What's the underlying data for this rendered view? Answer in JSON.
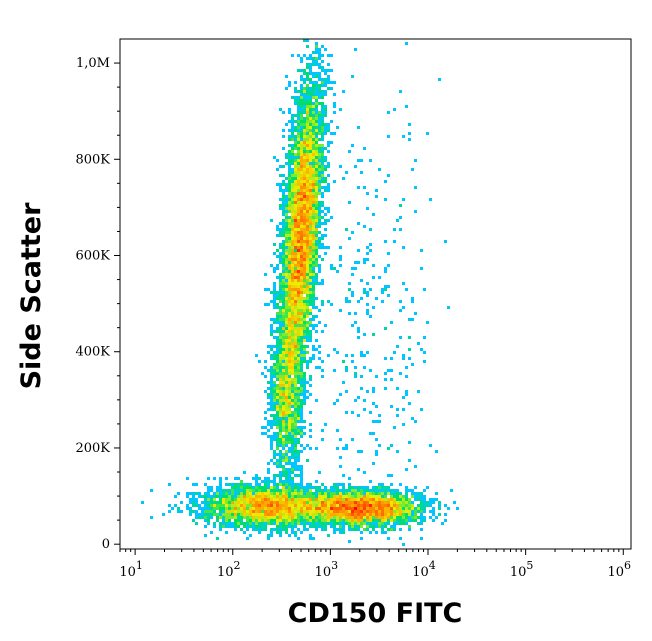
{
  "chart_data": {
    "type": "scatter",
    "subtype": "flow-cytometry density plot",
    "xlabel": "CD150 FITC",
    "ylabel": "Side Scatter",
    "x_scale": "log",
    "xlim": [
      7,
      1200000
    ],
    "ylim": [
      -10000,
      1050000
    ],
    "x_ticks": [
      {
        "value": 10,
        "base": "10",
        "exp": "1"
      },
      {
        "value": 100,
        "base": "10",
        "exp": "2"
      },
      {
        "value": 1000,
        "base": "10",
        "exp": "3"
      },
      {
        "value": 10000,
        "base": "10",
        "exp": "4"
      },
      {
        "value": 100000,
        "base": "10",
        "exp": "5"
      },
      {
        "value": 1000000,
        "base": "10",
        "exp": "6"
      }
    ],
    "y_ticks": [
      {
        "value": 0,
        "label": "0"
      },
      {
        "value": 200000,
        "label": "200K"
      },
      {
        "value": 400000,
        "label": "400K"
      },
      {
        "value": 600000,
        "label": "600K"
      },
      {
        "value": 800000,
        "label": "800K"
      },
      {
        "value": 1000000,
        "label": "1,0M"
      }
    ],
    "colormap": [
      "#0000ff",
      "#00c8ff",
      "#00e060",
      "#f0f000",
      "#ff8000",
      "#ff0000"
    ],
    "populations": [
      {
        "name": "main-streak",
        "cx_log": 2.7,
        "cy": 640000,
        "sx_log": 0.09,
        "sy": 160000,
        "slope_log_per_100k": 0.035,
        "count": 7000
      },
      {
        "name": "lower-left-cluster",
        "cx_log": 2.35,
        "cy": 80000,
        "sx_log": 0.32,
        "sy": 22000,
        "count": 3000
      },
      {
        "name": "lower-right-cluster",
        "cx_log": 3.3,
        "cy": 75000,
        "sx_log": 0.3,
        "sy": 18000,
        "count": 3500
      },
      {
        "name": "tail-lower",
        "cx_log": 2.55,
        "cy": 300000,
        "sx_log": 0.08,
        "sy": 80000,
        "count": 1200
      },
      {
        "name": "sparse-right",
        "cx_log": 3.4,
        "cy": 450000,
        "sx_log": 0.35,
        "sy": 250000,
        "count": 350
      }
    ]
  }
}
